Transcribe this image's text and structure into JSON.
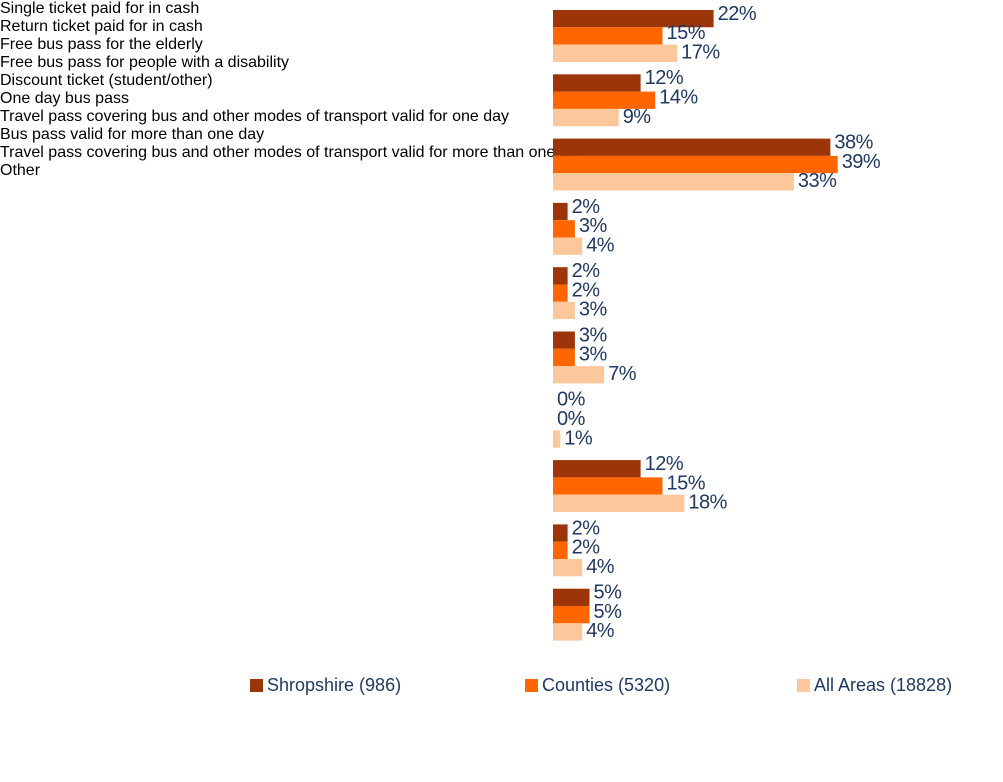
{
  "chart_data": {
    "type": "hbar",
    "categories": [
      "Single ticket paid for in cash",
      "Return ticket paid for in cash",
      "Free bus pass for the elderly",
      "Free bus pass for people with a disability",
      "Discount ticket (student/other)",
      "One day bus pass",
      "Travel pass covering bus and other modes of transport valid for one day",
      "Bus pass valid for more than one day",
      "Travel pass covering bus and other modes of transport valid for more than one day",
      "Other"
    ],
    "series": [
      {
        "name": "Shropshire (986)",
        "color": "#9c3509",
        "values": [
          22,
          12,
          38,
          2,
          2,
          3,
          0,
          12,
          2,
          5
        ],
        "value_labels": [
          "22%",
          "12%",
          "38%",
          "2%",
          "2%",
          "3%",
          "0%",
          "12%",
          "2%",
          "5%"
        ]
      },
      {
        "name": "Counties (5320)",
        "color": "#ff6600",
        "values": [
          15,
          14,
          39,
          3,
          2,
          3,
          0,
          15,
          2,
          5
        ],
        "value_labels": [
          "15%",
          "14%",
          "39%",
          "3%",
          "2%",
          "3%",
          "0%",
          "15%",
          "2%",
          "5%"
        ]
      },
      {
        "name": "All Areas (18828)",
        "color": "#fcc79a",
        "values": [
          17,
          9,
          33,
          4,
          3,
          7,
          1,
          18,
          4,
          4
        ],
        "value_labels": [
          "17%",
          "9%",
          "33%",
          "4%",
          "3%",
          "7%",
          "1%",
          "18%",
          "4%",
          "4%"
        ]
      }
    ],
    "xlim": [
      0,
      60
    ]
  }
}
